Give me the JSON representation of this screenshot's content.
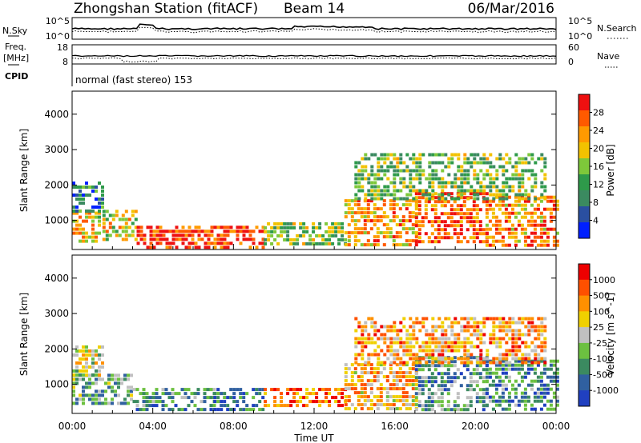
{
  "header": {
    "station": "Zhongshan Station (fitACF)",
    "beam": "Beam 14",
    "date": "06/Mar/2016"
  },
  "noise_panel": {
    "left_label": "N.Sky",
    "right_label": "N.Search",
    "left_ticks": [
      "10^5",
      "10^0"
    ],
    "right_ticks": [
      "10^5",
      "10^0"
    ]
  },
  "freq_panel": {
    "left_label_1": "Freq.",
    "left_label_2": "[MHz]",
    "right_label": "Nave",
    "left_ticks": [
      "18",
      "8"
    ],
    "right_ticks": [
      "60",
      "0"
    ]
  },
  "cpid": {
    "label": "CPID",
    "value": "normal (fast stereo) 153"
  },
  "x_axis": {
    "label": "Time UT",
    "ticks": [
      "00:00",
      "04:00",
      "08:00",
      "12:00",
      "16:00",
      "20:00",
      "00:00"
    ]
  },
  "colors": {
    "power": [
      "#0020ff",
      "#2a4fa0",
      "#3b8a60",
      "#2e9a4a",
      "#7ec83a",
      "#f2c200",
      "#ff9a00",
      "#ff5a00",
      "#ee1010"
    ],
    "velocity": [
      "#2040c0",
      "#3060a0",
      "#3b8a60",
      "#6cc040",
      "#c0c0c0",
      "#f0d000",
      "#ff9000",
      "#ff5000",
      "#ee0000"
    ]
  },
  "chart_data": [
    {
      "type": "heatmap",
      "title": "",
      "xlabel": "Time UT",
      "ylabel": "Slant Range [km]",
      "yticks": [
        1000,
        2000,
        3000,
        4000
      ],
      "ylim": [
        180,
        4650
      ],
      "xlim_hours": [
        0,
        24
      ],
      "colorbar_label": "Power [dB]",
      "colorbar_ticks": [
        "4",
        "8",
        "12",
        "16",
        "20",
        "24",
        "28"
      ],
      "bands": [
        {
          "t0": 0.0,
          "t1": 1.3,
          "r0": 450,
          "r1": 1250,
          "level": 0.65
        },
        {
          "t0": 0.0,
          "t1": 1.5,
          "r0": 1300,
          "r1": 2100,
          "level": 0.25
        },
        {
          "t0": 1.5,
          "t1": 3.2,
          "r0": 450,
          "r1": 1300,
          "level": 0.6
        },
        {
          "t0": 3.2,
          "t1": 9.5,
          "r0": 250,
          "r1": 850,
          "level": 0.9
        },
        {
          "t0": 9.5,
          "t1": 13.5,
          "r0": 350,
          "r1": 950,
          "level": 0.5
        },
        {
          "t0": 13.5,
          "t1": 17.0,
          "r0": 350,
          "r1": 1600,
          "level": 0.7
        },
        {
          "t0": 17.0,
          "t1": 20.5,
          "r0": 350,
          "r1": 1800,
          "level": 0.85
        },
        {
          "t0": 20.5,
          "t1": 24.0,
          "r0": 300,
          "r1": 1700,
          "level": 0.75
        },
        {
          "t0": 14.0,
          "t1": 23.5,
          "r0": 1600,
          "r1": 2900,
          "level": 0.45
        }
      ]
    },
    {
      "type": "heatmap",
      "title": "",
      "xlabel": "Time UT",
      "ylabel": "Slant Range [km]",
      "yticks": [
        1000,
        2000,
        3000,
        4000
      ],
      "ylim": [
        180,
        4650
      ],
      "xlim_hours": [
        0,
        24
      ],
      "colorbar_label": "Velocity [m s^-1]",
      "colorbar_ticks": [
        "1000",
        "500",
        "100",
        "25",
        "-25",
        "-100",
        "-500",
        "-1000"
      ],
      "bands": [
        {
          "t0": 0.0,
          "t1": 3.0,
          "r0": 450,
          "r1": 1300,
          "level": 0.35
        },
        {
          "t0": 0.0,
          "t1": 1.5,
          "r0": 1300,
          "r1": 2100,
          "level": 0.5
        },
        {
          "t0": 3.0,
          "t1": 7.0,
          "r0": 300,
          "r1": 900,
          "level": 0.3
        },
        {
          "t0": 7.0,
          "t1": 9.5,
          "r0": 300,
          "r1": 900,
          "level": 0.2
        },
        {
          "t0": 9.5,
          "t1": 13.5,
          "r0": 350,
          "r1": 900,
          "level": 0.8
        },
        {
          "t0": 13.5,
          "t1": 17.0,
          "r0": 350,
          "r1": 1600,
          "level": 0.65
        },
        {
          "t0": 17.0,
          "t1": 20.5,
          "r0": 300,
          "r1": 1800,
          "level": 0.3
        },
        {
          "t0": 20.5,
          "t1": 24.0,
          "r0": 300,
          "r1": 1700,
          "level": 0.25
        },
        {
          "t0": 14.0,
          "t1": 23.5,
          "r0": 1600,
          "r1": 2900,
          "level": 0.7
        }
      ]
    }
  ]
}
